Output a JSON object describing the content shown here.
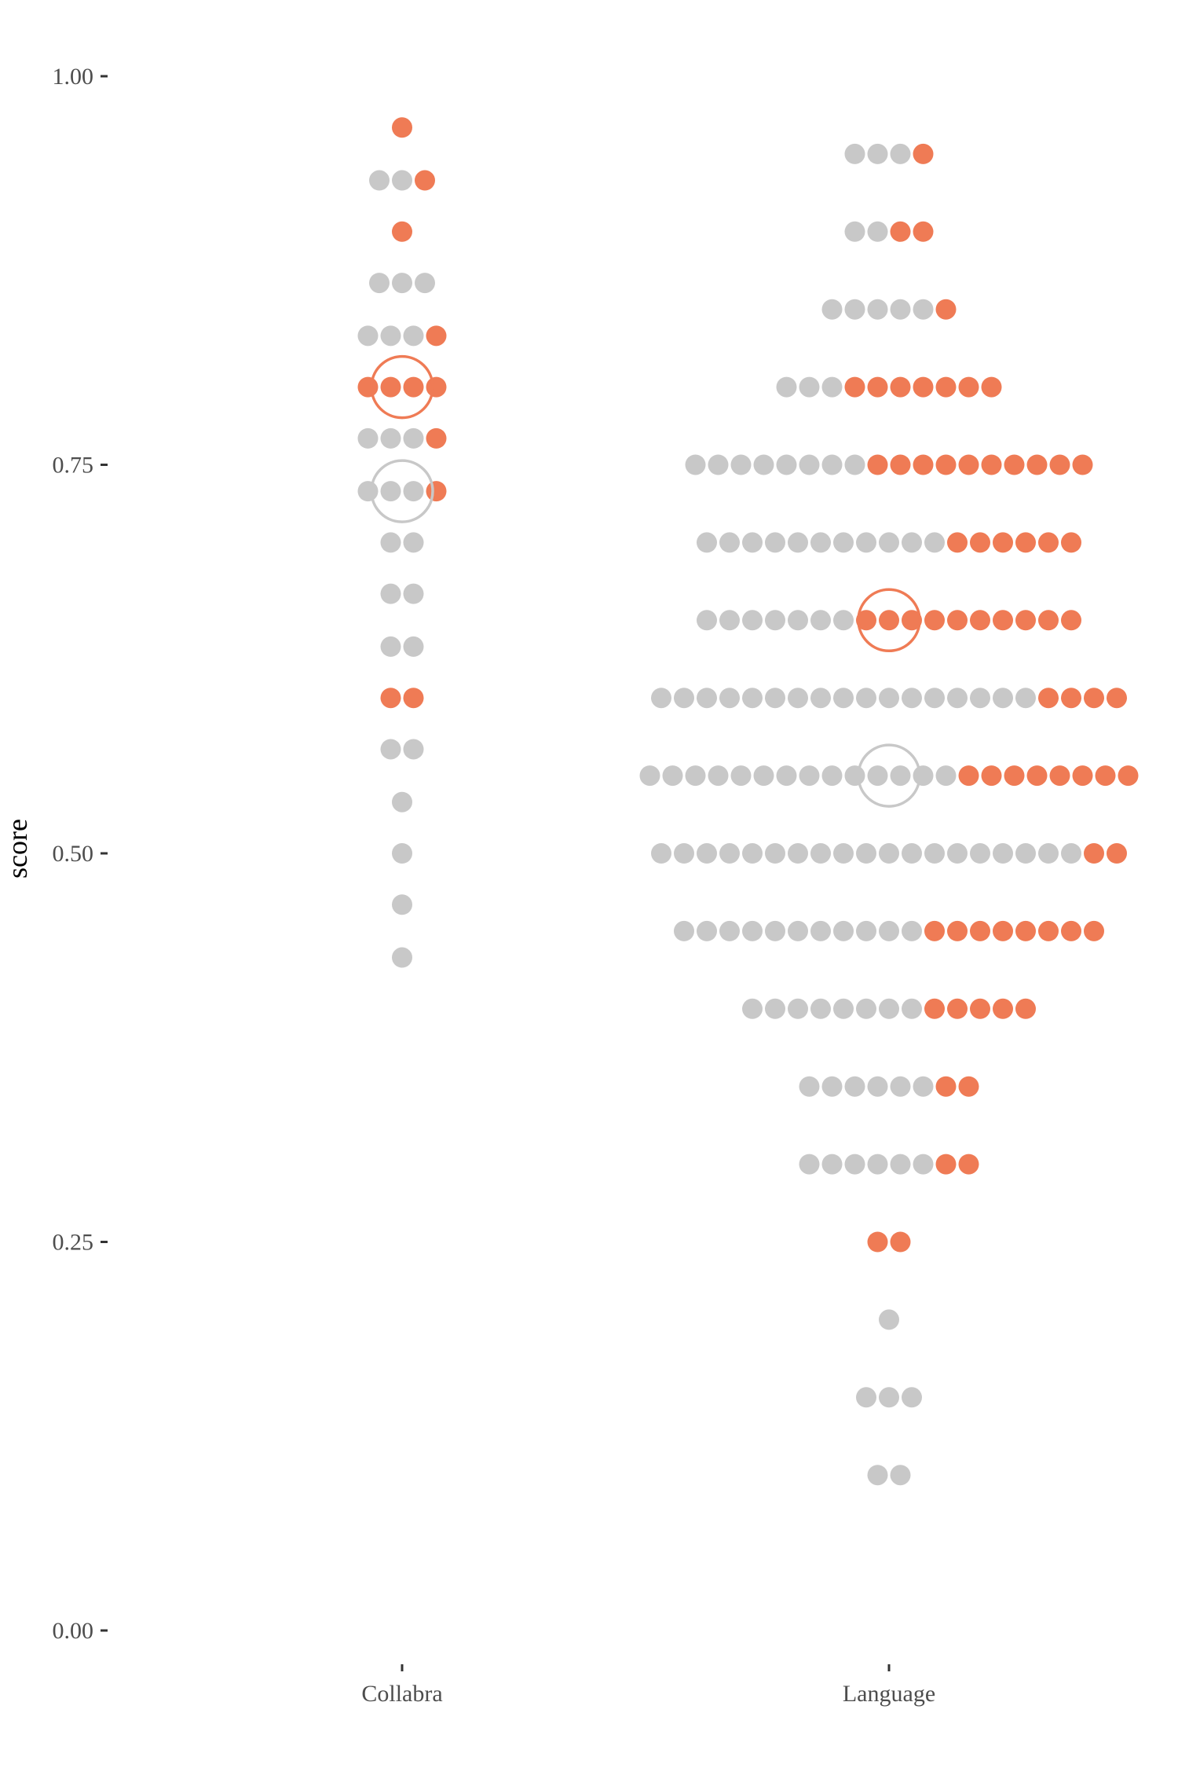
{
  "chart_data": {
    "type": "scatter",
    "subtype": "dotplot",
    "title": "",
    "xlabel": "",
    "ylabel": "score",
    "ylim": [
      -0.05,
      1.05
    ],
    "yticks": [
      "0.00",
      "0.25",
      "0.50",
      "0.75",
      "1.00"
    ],
    "ytick_values": [
      0,
      0.25,
      0.5,
      0.75,
      1.0
    ],
    "categories": [
      "Collabra",
      "Language"
    ],
    "grid": false,
    "legend": "none",
    "colors": {
      "orange": "#EF7B55",
      "gray": "#C8C8C8"
    },
    "groups": [
      {
        "category": "Collabra",
        "rows": [
          {
            "y": 0.967,
            "gray": 0,
            "orange": 1
          },
          {
            "y": 0.933,
            "gray": 2,
            "orange": 1
          },
          {
            "y": 0.9,
            "gray": 0,
            "orange": 1
          },
          {
            "y": 0.867,
            "gray": 3,
            "orange": 0
          },
          {
            "y": 0.833,
            "gray": 3,
            "orange": 1
          },
          {
            "y": 0.8,
            "gray": 0,
            "orange": 4
          },
          {
            "y": 0.767,
            "gray": 3,
            "orange": 1
          },
          {
            "y": 0.733,
            "gray": 3,
            "orange": 1
          },
          {
            "y": 0.7,
            "gray": 2,
            "orange": 0
          },
          {
            "y": 0.667,
            "gray": 2,
            "orange": 0
          },
          {
            "y": 0.633,
            "gray": 2,
            "orange": 0
          },
          {
            "y": 0.6,
            "gray": 0,
            "orange": 2
          },
          {
            "y": 0.567,
            "gray": 2,
            "orange": 0
          },
          {
            "y": 0.533,
            "gray": 1,
            "orange": 0
          },
          {
            "y": 0.5,
            "gray": 1,
            "orange": 0
          },
          {
            "y": 0.467,
            "gray": 1,
            "orange": 0
          },
          {
            "y": 0.433,
            "gray": 1,
            "orange": 0
          }
        ],
        "mean_markers": [
          {
            "color": "orange",
            "y": 0.8
          },
          {
            "color": "gray",
            "y": 0.733
          }
        ]
      },
      {
        "category": "Language",
        "rows": [
          {
            "y": 0.95,
            "gray": 3,
            "orange": 1
          },
          {
            "y": 0.9,
            "gray": 2,
            "orange": 2
          },
          {
            "y": 0.85,
            "gray": 5,
            "orange": 1
          },
          {
            "y": 0.8,
            "gray": 3,
            "orange": 7
          },
          {
            "y": 0.75,
            "gray": 8,
            "orange": 10
          },
          {
            "y": 0.7,
            "gray": 11,
            "orange": 6
          },
          {
            "y": 0.65,
            "gray": 7,
            "orange": 10
          },
          {
            "y": 0.6,
            "gray": 17,
            "orange": 4
          },
          {
            "y": 0.55,
            "gray": 14,
            "orange": 8
          },
          {
            "y": 0.5,
            "gray": 19,
            "orange": 2
          },
          {
            "y": 0.45,
            "gray": 11,
            "orange": 8
          },
          {
            "y": 0.4,
            "gray": 8,
            "orange": 5
          },
          {
            "y": 0.35,
            "gray": 6,
            "orange": 2
          },
          {
            "y": 0.3,
            "gray": 6,
            "orange": 2
          },
          {
            "y": 0.25,
            "gray": 0,
            "orange": 2
          },
          {
            "y": 0.2,
            "gray": 1,
            "orange": 0
          },
          {
            "y": 0.15,
            "gray": 3,
            "orange": 0
          },
          {
            "y": 0.1,
            "gray": 2,
            "orange": 0
          }
        ],
        "mean_markers": [
          {
            "color": "orange",
            "y": 0.65
          },
          {
            "color": "gray",
            "y": 0.55
          }
        ]
      }
    ]
  }
}
